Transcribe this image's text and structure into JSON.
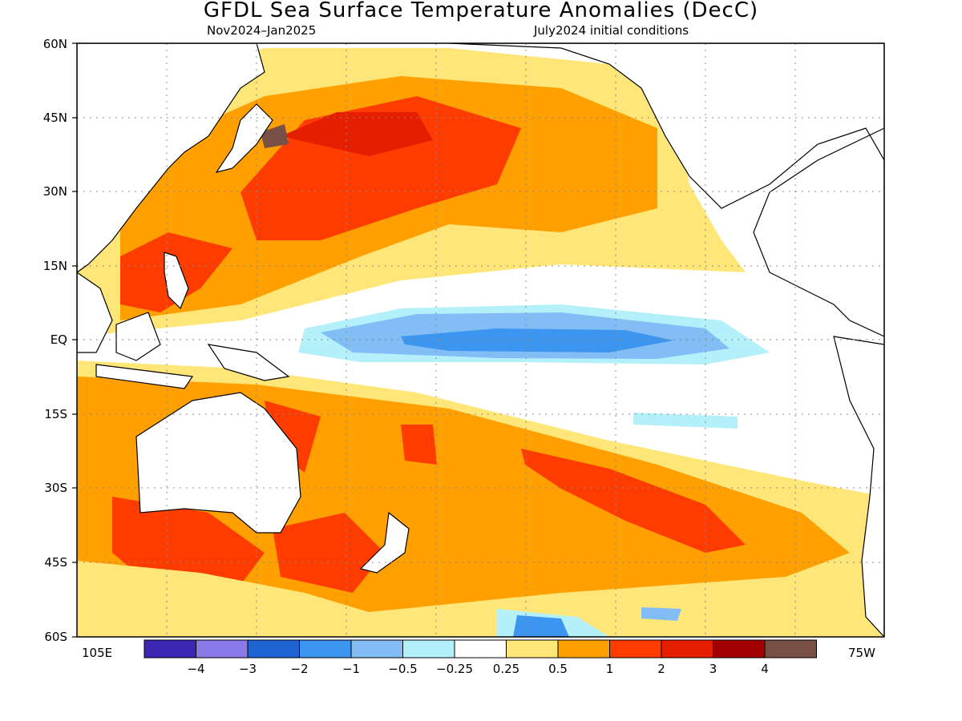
{
  "title": "GFDL Sea Surface Temperature Anomalies (DecC)",
  "subtitle_left": "Nov2024–Jan2025",
  "subtitle_right": "July2024 initial conditions",
  "lat_labels": [
    "60N",
    "45N",
    "30N",
    "15N",
    "EQ",
    "15S",
    "30S",
    "45S",
    "60S"
  ],
  "lon_labels": [
    "105E",
    "75W"
  ],
  "colorbar": {
    "colors": [
      "#3c26b4",
      "#8a7ae8",
      "#1e64d2",
      "#3c96f0",
      "#82bef5",
      "#b4f0fa",
      "#ffffff",
      "#ffe678",
      "#ffa000",
      "#ff3c00",
      "#e61e00",
      "#a00000",
      "#785046"
    ],
    "labels": [
      "−4",
      "−3",
      "−2",
      "−1",
      "−0.5",
      "−0.25",
      "0.25",
      "0.5",
      "1",
      "2",
      "3",
      "4"
    ]
  },
  "colors": {
    "ocean_neutral": "#ffffff",
    "land_outline": "#000000"
  }
}
